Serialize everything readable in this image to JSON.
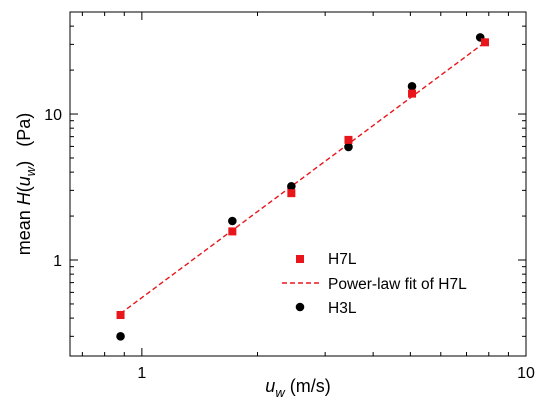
{
  "chart_data": {
    "type": "scatter",
    "xscale": "log",
    "yscale": "log",
    "xlim": [
      0.65,
      10
    ],
    "ylim": [
      0.22,
      50
    ],
    "xticks": [
      {
        "value": 1,
        "label": "1"
      },
      {
        "value": 10,
        "label": "10"
      }
    ],
    "yticks": [
      {
        "value": 1,
        "label": "1"
      },
      {
        "value": 10,
        "label": "10"
      }
    ],
    "xlabel": {
      "main": "u",
      "sub": "w",
      "unit": "(m/s)"
    },
    "ylabel": {
      "prefix": "mean ",
      "H": "H",
      "open": "(",
      "u": "u",
      "sub": "w",
      "close": ")",
      "unit": "(Pa)"
    },
    "legend_position": "lower-right",
    "series": [
      {
        "name": "H7L",
        "marker": "square",
        "color": "#e8161b",
        "x": [
          0.88,
          1.72,
          2.45,
          3.45,
          5.05,
          7.82
        ],
        "y": [
          0.42,
          1.57,
          2.87,
          6.65,
          13.8,
          31.0
        ]
      },
      {
        "name": "Power-law fit of H7L",
        "style": "dashed-line",
        "color": "#e8161b",
        "x": [
          0.88,
          7.82
        ],
        "y": [
          0.43,
          31.0
        ]
      },
      {
        "name": "H3L",
        "marker": "circle",
        "color": "#000000",
        "x": [
          0.88,
          1.72,
          2.45,
          3.45,
          5.05,
          7.6
        ],
        "y": [
          0.3,
          1.85,
          3.2,
          5.95,
          15.5,
          33.5
        ]
      }
    ]
  }
}
